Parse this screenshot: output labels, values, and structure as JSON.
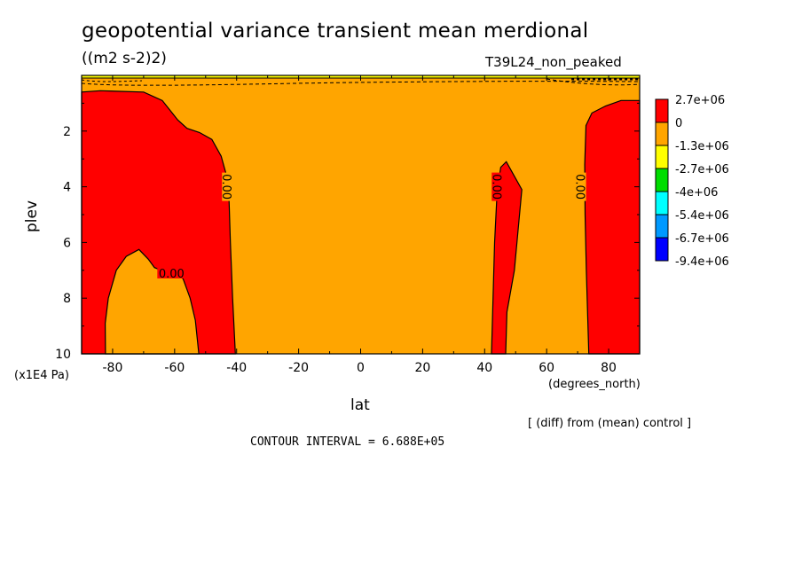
{
  "chart_data": {
    "type": "heatmap",
    "subtype": "filled-contour",
    "title": "geopotential variance transient mean merdional",
    "units": "((m2 s-2)2)",
    "run_label": "T39L24_non_peaked",
    "xlabel": "lat",
    "xunit": "(degrees_north)",
    "ylabel": "plev",
    "yunit": "(x1E4 Pa)",
    "xlim": [
      -90,
      90
    ],
    "ylim": [
      10,
      0
    ],
    "y_inverted": true,
    "x_ticks": [
      "-80",
      "-60",
      "-40",
      "-20",
      "0",
      "20",
      "40",
      "60",
      "80"
    ],
    "y_ticks": [
      "2",
      "4",
      "6",
      "8",
      "10"
    ],
    "colorbar": {
      "labels": [
        "2.7e+06",
        "0",
        "-1.3e+06",
        "-2.7e+06",
        "-4e+06",
        "-5.4e+06",
        "-6.7e+06",
        "-9.4e+06"
      ],
      "colors": [
        "#ff0000",
        "#ffa500",
        "#ffff00",
        "#00dd00",
        "#00ffff",
        "#0099ff",
        "#0000ff"
      ]
    },
    "background_color": "#ffa500",
    "positive_color": "#ff0000",
    "regions_positive": [
      {
        "name": "southern high-latitude lobe",
        "lat_range": [
          -90,
          -40
        ],
        "plev_top": 0.6,
        "plev_bottom": 10
      },
      {
        "name": "narrow tongue near 45N",
        "lat_range": [
          42,
          52
        ],
        "plev_top": 3.1,
        "plev_bottom": 10
      },
      {
        "name": "northern high-latitude lobe",
        "lat_range": [
          72,
          90
        ],
        "plev_top": 0.9,
        "plev_bottom": 10
      }
    ],
    "regions_negative_inside_positive": [
      {
        "name": "lower tropospheric hole near 65S",
        "lat_range": [
          -82,
          -50
        ],
        "plev_top": 6.2,
        "plev_bottom": 10
      }
    ],
    "contour_labels": [
      {
        "text": "0.00",
        "lat": -43,
        "plev": 4.0,
        "rotated": true
      },
      {
        "text": "0.00",
        "lat": -61,
        "plev": 7.1,
        "rotated": false
      },
      {
        "text": "0.00",
        "lat": 44,
        "plev": 4.0,
        "rotated": true
      },
      {
        "text": "0.00",
        "lat": 71,
        "plev": 4.0,
        "rotated": true
      }
    ],
    "annotations": {
      "diff_note": "[ (diff) from (mean) control ]",
      "contour_interval": "CONTOUR INTERVAL = 6.688E+05"
    }
  }
}
